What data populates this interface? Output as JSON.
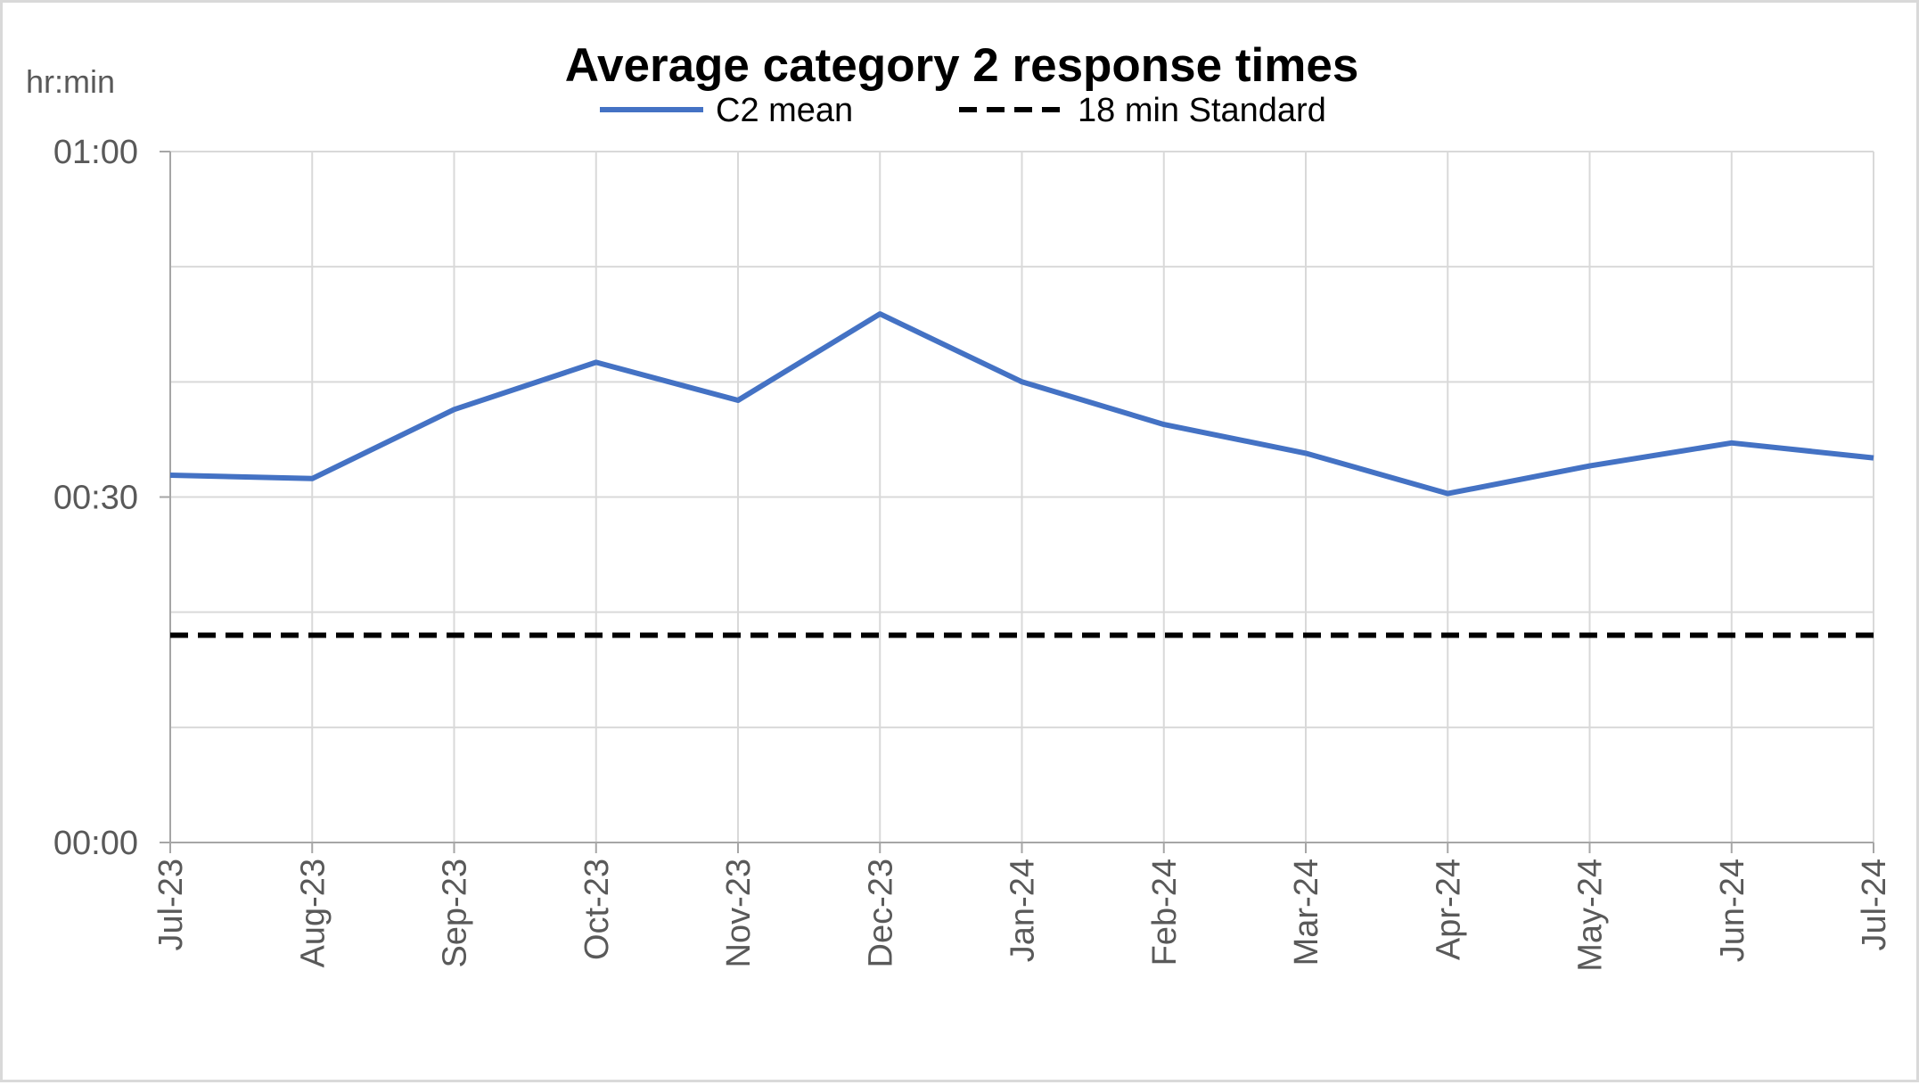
{
  "chart_data": {
    "type": "line",
    "title": "Average category 2 response times",
    "ylabel": "hr:min",
    "xlabel": "",
    "categories": [
      "Jul-23",
      "Aug-23",
      "Sep-23",
      "Oct-23",
      "Nov-23",
      "Dec-23",
      "Jan-24",
      "Feb-24",
      "Mar-24",
      "Apr-24",
      "May-24",
      "Jun-24",
      "Jul-24"
    ],
    "y_unit": "minutes",
    "ylim": [
      0,
      60
    ],
    "yticks": [
      {
        "value": 0,
        "label": "00:00"
      },
      {
        "value": 30,
        "label": "00:30"
      },
      {
        "value": 60,
        "label": "01:00"
      }
    ],
    "ygrid_minutes": [
      0,
      10,
      20,
      30,
      40,
      50,
      60
    ],
    "grid": true,
    "legend_position": "top",
    "series": [
      {
        "name": "C2 mean",
        "style": "solid",
        "color": "#4472c4",
        "values": [
          31.9,
          31.6,
          37.6,
          41.7,
          38.4,
          45.9,
          40.0,
          36.3,
          33.8,
          30.3,
          32.7,
          34.7,
          33.4
        ]
      },
      {
        "name": "18 min Standard",
        "style": "dashed",
        "color": "#000000",
        "values": [
          18,
          18,
          18,
          18,
          18,
          18,
          18,
          18,
          18,
          18,
          18,
          18,
          18
        ]
      }
    ]
  }
}
